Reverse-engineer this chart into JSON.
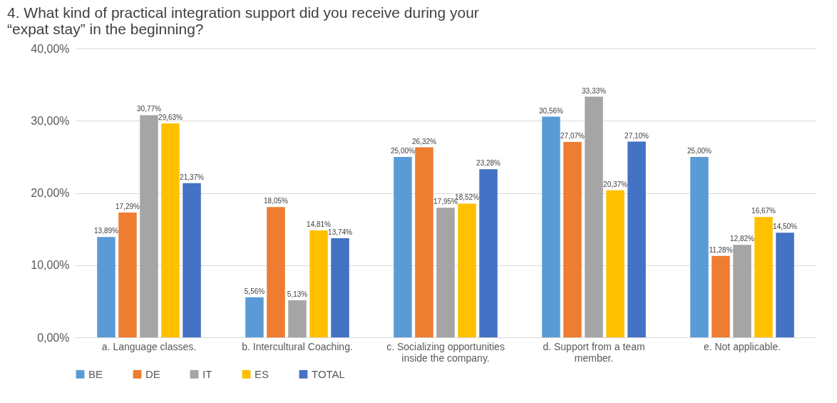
{
  "chart_data": {
    "type": "bar",
    "title": "4.  What kind of practical integration support did you receive during your\n“expat stay” in the beginning?",
    "categories": [
      "a. Language classes.",
      "b. Intercultural Coaching.",
      "c. Socializing opportunities inside the company.",
      "d. Support from a team member.",
      "e. Not applicable."
    ],
    "series": [
      {
        "name": "BE",
        "color": "#5b9bd5",
        "values": [
          13.89,
          5.56,
          25.0,
          30.56,
          25.0
        ],
        "value_labels": [
          "13,89%",
          "5,56%",
          "25,00%",
          "30,56%",
          "25,00%"
        ]
      },
      {
        "name": "DE",
        "color": "#ed7d31",
        "values": [
          17.29,
          18.05,
          26.32,
          27.07,
          11.28
        ],
        "value_labels": [
          "17,29%",
          "18,05%",
          "26,32%",
          "27,07%",
          "11,28%"
        ]
      },
      {
        "name": "IT",
        "color": "#a5a5a5",
        "values": [
          30.77,
          5.13,
          17.95,
          33.33,
          12.82
        ],
        "value_labels": [
          "30,77%",
          "5,13%",
          "17,95%",
          "33,33%",
          "12,82%"
        ]
      },
      {
        "name": "ES",
        "color": "#ffc000",
        "values": [
          29.63,
          14.81,
          18.52,
          20.37,
          16.67
        ],
        "value_labels": [
          "29,63%",
          "14,81%",
          "18,52%",
          "20,37%",
          "16,67%"
        ]
      },
      {
        "name": "TOTAL",
        "color": "#4472c4",
        "values": [
          21.37,
          13.74,
          23.28,
          27.1,
          14.5
        ],
        "value_labels": [
          "21,37%",
          "13,74%",
          "23,28%",
          "27,10%",
          "14,50%"
        ]
      }
    ],
    "ylim": [
      0,
      40
    ],
    "yticks": [
      {
        "value": 0,
        "label": "0,00%"
      },
      {
        "value": 10,
        "label": "10,00%"
      },
      {
        "value": 20,
        "label": "20,00%"
      },
      {
        "value": 30,
        "label": "30,00%"
      },
      {
        "value": 40,
        "label": "40,00%"
      }
    ],
    "grid": "y",
    "legend": "bottom"
  }
}
